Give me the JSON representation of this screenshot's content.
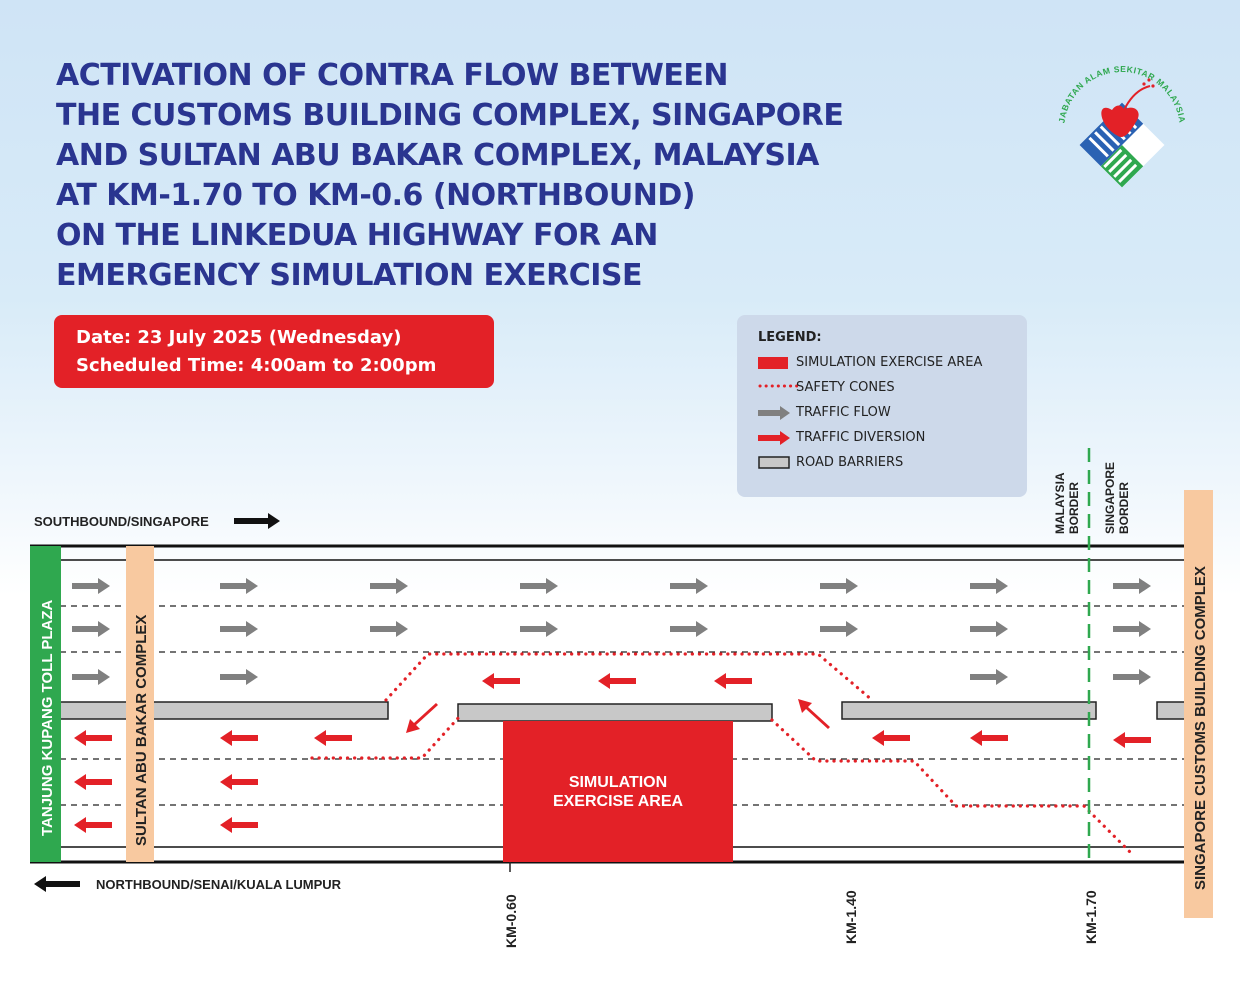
{
  "title_lines": [
    "ACTIVATION OF CONTRA FLOW BETWEEN",
    "THE CUSTOMS BUILDING COMPLEX, SINGAPORE",
    "AND SULTAN ABU BAKAR COMPLEX, MALAYSIA",
    "AT KM-1.70 TO KM-0.6 (NORTHBOUND)",
    "ON THE LINKEDUA HIGHWAY FOR AN",
    "EMERGENCY SIMULATION EXERCISE"
  ],
  "schedule": {
    "date": "Date: 23 July 2025 (Wednesday)",
    "time": "Scheduled Time: 4:00am to 2:00pm",
    "color": "#e32127"
  },
  "logo": {
    "text": "JABATAN ALAM SEKITAR MALAYSIA",
    "icon": "department-emblem"
  },
  "legend": {
    "title": "LEGEND:",
    "items": [
      {
        "label": "SIMULATION EXERCISE AREA",
        "icon": "red-rectangle"
      },
      {
        "label": "SAFETY CONES",
        "icon": "red-dotted-line"
      },
      {
        "label": "TRAFFIC FLOW",
        "icon": "grey-arrow"
      },
      {
        "label": "TRAFFIC DIVERSION",
        "icon": "red-arrow"
      },
      {
        "label": "ROAD BARRIERS",
        "icon": "grey-bar"
      }
    ]
  },
  "diagram": {
    "southbound_label": "SOUTHBOUND/SINGAPORE",
    "northbound_label": "NORTHBOUND/SENAI/KUALA LUMPUR",
    "toll_plaza": "TANJUNG KUPANG TOLL PLAZA",
    "sultan_complex": "SULTAN ABU BAKAR COMPLEX",
    "singapore_complex": "SINGAPORE CUSTOMS BUILDING COMPLEX",
    "simulation_area": [
      "SIMULATION",
      "EXERCISE AREA"
    ],
    "malaysia_border": [
      "MALAYSIA",
      "BORDER"
    ],
    "singapore_border": [
      "SINGAPORE",
      "BORDER"
    ],
    "km_markers": [
      "KM-0.60",
      "KM-1.40",
      "KM-1.70"
    ],
    "colors": {
      "title": "#2a3590",
      "red": "#e32127",
      "green": "#2fa84f",
      "orange": "#f8c9a0",
      "grey": "#808080",
      "barrier": "#c8c8c8"
    }
  }
}
